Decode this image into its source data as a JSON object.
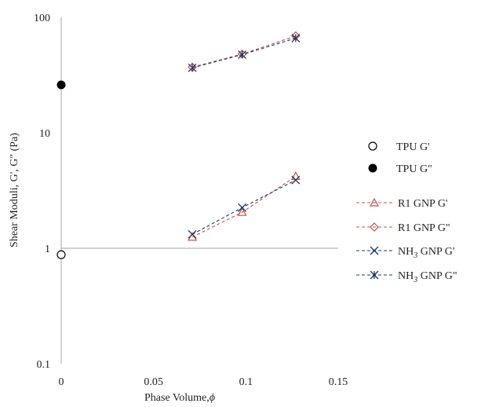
{
  "chart_data": {
    "type": "scatter",
    "title": "",
    "xlabel": "Phase Volume,",
    "xlabel_symbol": "ϕ",
    "ylabel": "Shear Moduli, G', G\" (Pa)",
    "xlim": [
      0,
      0.15
    ],
    "ylim": [
      0.1,
      100
    ],
    "yscale": "log",
    "x_ticks": [
      "0",
      "0.05",
      "0.1",
      "0.15"
    ],
    "y_ticks": [
      "0.1",
      "1",
      "10",
      "100"
    ],
    "grid": false,
    "legend_position": "right",
    "series": [
      {
        "name": "TPU G'",
        "marker": "open-circle",
        "line": "none",
        "color": "#000000",
        "x": [
          0
        ],
        "y": [
          0.88
        ]
      },
      {
        "name": "TPU G\"",
        "marker": "filled-circle",
        "line": "none",
        "color": "#000000",
        "x": [
          0
        ],
        "y": [
          26
        ]
      },
      {
        "name": "R1 GNP G'",
        "marker": "triangle",
        "line": "dashed",
        "color": "#c0504d",
        "x": [
          0.071,
          0.098,
          0.127
        ],
        "y": [
          1.25,
          2.05,
          4.2
        ]
      },
      {
        "name": "R1 GNP G\"",
        "marker": "diamond",
        "line": "dashed",
        "color": "#c0504d",
        "x": [
          0.071,
          0.098,
          0.127
        ],
        "y": [
          37,
          48,
          69
        ]
      },
      {
        "name": "NH",
        "name_sub": "3",
        "name_suffix": " GNP G'",
        "marker": "x",
        "line": "dashed",
        "color": "#1f3864",
        "x": [
          0.071,
          0.098,
          0.127
        ],
        "y": [
          1.32,
          2.25,
          3.9
        ]
      },
      {
        "name": "NH",
        "name_sub": "3",
        "name_suffix": " GNP G\"",
        "marker": "asterisk",
        "line": "dashed",
        "color": "#1f3864",
        "x": [
          0.071,
          0.098,
          0.127
        ],
        "y": [
          36.5,
          47.5,
          66
        ]
      }
    ]
  }
}
